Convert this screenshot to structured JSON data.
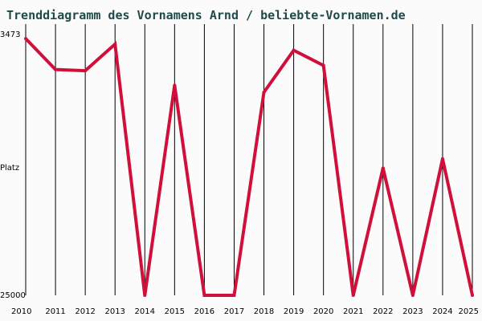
{
  "chart_data": {
    "type": "line",
    "title": "Trenddiagramm des Vornamens Arnd / beliebte-Vornamen.de",
    "ylabel": "Platz",
    "ytick_labels": [
      "3473",
      "25000"
    ],
    "ylim": [
      25000,
      3473
    ],
    "y_inverted": true,
    "grid": "vertical",
    "x": [
      "2010",
      "2011",
      "2012",
      "2013",
      "2014",
      "2015",
      "2016",
      "2017",
      "2018",
      "2019",
      "2020",
      "2021",
      "2022",
      "2023",
      "2024",
      "2025"
    ],
    "series": [
      {
        "values": [
          3000,
          5650,
          5750,
          3473,
          25000,
          7000,
          25000,
          25000,
          7600,
          4000,
          5300,
          25000,
          14100,
          25000,
          13300,
          25000
        ]
      }
    ],
    "colors": {
      "line": "#d0103a",
      "title": "#1f4a4a",
      "grid": "#000000",
      "background": "#fbfbfb"
    }
  }
}
